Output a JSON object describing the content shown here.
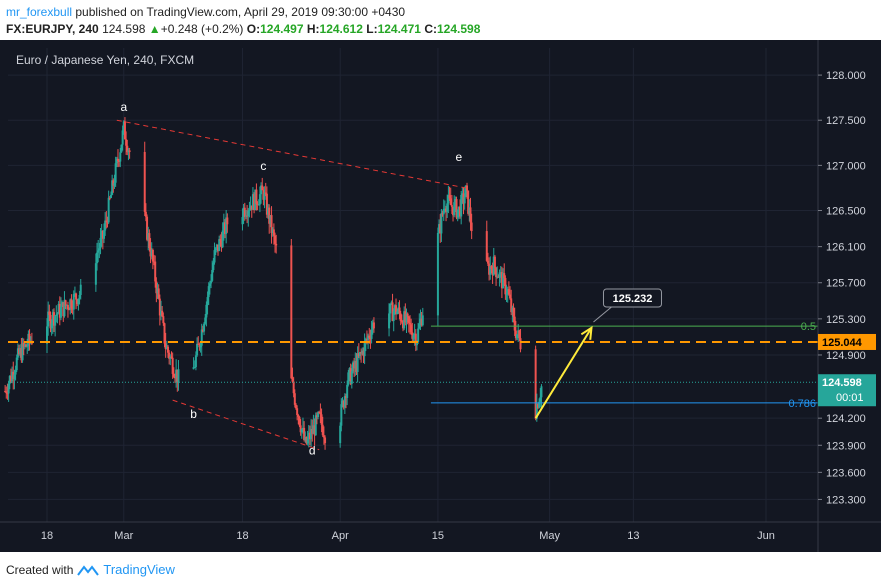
{
  "header": {
    "author": "mr_forexbull",
    "published": "published on TradingView.com, April 29, 2019 09:30:00 +0430",
    "symbol": "FX:EURJPY, 240",
    "last": "124.598",
    "change": "+0.248 (+0.2%)",
    "o_label": "O:",
    "o_val": "124.497",
    "h_label": "H:",
    "h_val": "124.612",
    "l_label": "L:",
    "l_val": "124.471",
    "c_label": "C:",
    "c_val": "124.598"
  },
  "footer": {
    "created": "Created with",
    "brand": "TradingView"
  },
  "colors": {
    "bg": "#131722",
    "up": "#26a69a",
    "down": "#ef5350",
    "grid": "#1f2433",
    "orange": "#ff9800",
    "green_fib": "#4caf50",
    "blue_fib": "#2196f3",
    "yellow": "#ffeb3b",
    "dashed_red": "#e53935"
  },
  "chart_data": {
    "type": "candlestick",
    "title": "Euro / Japanese Yen, 240, FXCM",
    "ylim": [
      123.05,
      128.3
    ],
    "y_ticks": [
      "128.000",
      "127.500",
      "127.000",
      "126.500",
      "126.100",
      "125.700",
      "125.300",
      "124.900",
      "124.200",
      "123.900",
      "123.600",
      "123.300"
    ],
    "y_tick_values": [
      128.0,
      127.5,
      127.0,
      126.5,
      126.1,
      125.7,
      125.3,
      124.9,
      124.2,
      123.9,
      123.6,
      123.3
    ],
    "x_ticks": [
      "18",
      "Mar",
      "18",
      "Apr",
      "15",
      "May",
      "13",
      "Jun"
    ],
    "x_tick_dates": [
      "2019-02-18",
      "2019-03-01",
      "2019-03-18",
      "2019-04-01",
      "2019-04-15",
      "2019-05-01",
      "2019-05-13",
      "2019-06-01"
    ],
    "price_path": [
      [
        "2019-02-12",
        124.5
      ],
      [
        "2019-02-14",
        124.9
      ],
      [
        "2019-02-17",
        125.2
      ],
      [
        "2019-02-20",
        125.4
      ],
      [
        "2019-02-23",
        125.6
      ],
      [
        "2019-02-26",
        126.2
      ],
      [
        "2019-02-28",
        127.0
      ],
      [
        "2019-03-01",
        127.4
      ],
      [
        "2019-03-03",
        126.8
      ],
      [
        "2019-03-05",
        126.0
      ],
      [
        "2019-03-07",
        125.0
      ],
      [
        "2019-03-10",
        124.4
      ],
      [
        "2019-03-12",
        125.1
      ],
      [
        "2019-03-14",
        126.0
      ],
      [
        "2019-03-16",
        126.4
      ],
      [
        "2019-03-18",
        126.5
      ],
      [
        "2019-03-21",
        126.7
      ],
      [
        "2019-03-23",
        126.0
      ],
      [
        "2019-03-25",
        124.6
      ],
      [
        "2019-03-27",
        123.9
      ],
      [
        "2019-03-29",
        124.2
      ],
      [
        "2019-03-31",
        123.8
      ],
      [
        "2019-04-02",
        124.6
      ],
      [
        "2019-04-04",
        124.9
      ],
      [
        "2019-04-06",
        125.3
      ],
      [
        "2019-04-09",
        125.4
      ],
      [
        "2019-04-12",
        125.1
      ],
      [
        "2019-04-14",
        125.8
      ],
      [
        "2019-04-16",
        126.6
      ],
      [
        "2019-04-18",
        126.5
      ],
      [
        "2019-04-19",
        126.7
      ],
      [
        "2019-04-21",
        125.8
      ],
      [
        "2019-04-23",
        125.9
      ],
      [
        "2019-04-25",
        125.6
      ],
      [
        "2019-04-26",
        125.2
      ],
      [
        "2019-04-28",
        124.8
      ],
      [
        "2019-04-29",
        124.3
      ],
      [
        "2019-04-30",
        124.6
      ]
    ],
    "annotations": {
      "points": [
        {
          "label": "a",
          "date": "2019-03-01",
          "price": 127.6
        },
        {
          "label": "b",
          "date": "2019-03-11",
          "price": 124.2
        },
        {
          "label": "c",
          "date": "2019-03-21",
          "price": 126.95
        },
        {
          "label": "d",
          "date": "2019-03-28",
          "price": 123.8
        },
        {
          "label": "e",
          "date": "2019-04-18",
          "price": 127.05
        }
      ],
      "upper_trendline": [
        [
          "2019-02-28",
          127.5
        ],
        [
          "2019-04-19",
          126.75
        ]
      ],
      "lower_trendline": [
        [
          "2019-03-08",
          124.4
        ],
        [
          "2019-03-29",
          123.85
        ]
      ],
      "fib_levels": [
        {
          "label": "0.5",
          "price": 125.22
        },
        {
          "label": "0.786",
          "price": 124.37
        }
      ],
      "horizontal_level": {
        "label": "125.044",
        "price": 125.044
      },
      "current_price": {
        "label": "124.598",
        "price": 124.598,
        "countdown": "00:01"
      },
      "target": {
        "label": "125.232",
        "price": 125.232
      },
      "projection_arrow": [
        [
          "2019-04-29",
          124.2
        ],
        [
          "2019-05-07",
          125.2
        ]
      ]
    }
  }
}
